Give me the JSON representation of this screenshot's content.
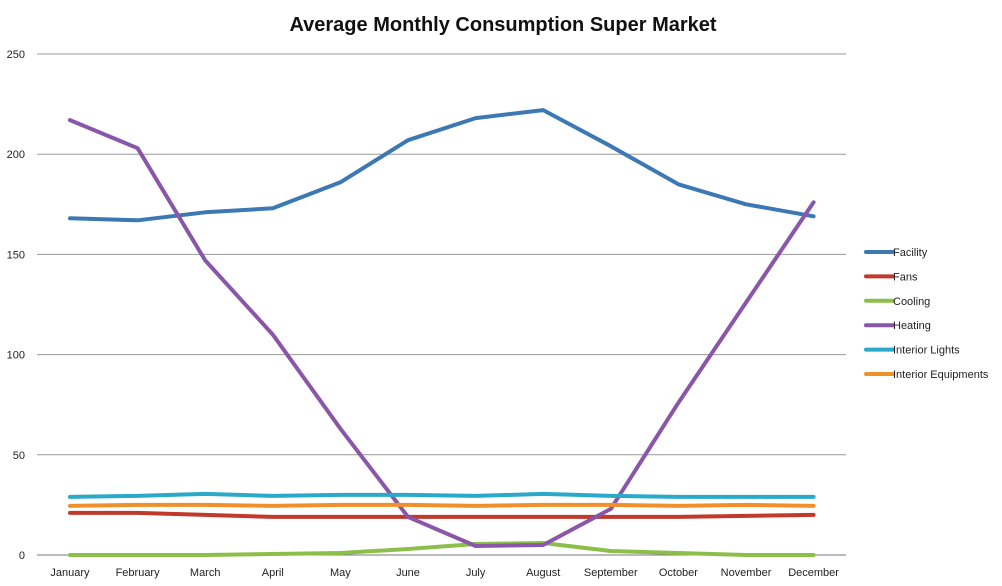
{
  "chart_data": {
    "type": "line",
    "title": "Average Monthly Consumption Super Market",
    "xlabel": "",
    "ylabel": "",
    "ylim": [
      0,
      250
    ],
    "yticks": [
      0,
      50,
      100,
      150,
      200,
      250
    ],
    "grid": true,
    "legend_position": "right",
    "categories": [
      "January",
      "February",
      "March",
      "April",
      "May",
      "June",
      "July",
      "August",
      "September",
      "October",
      "November",
      "December"
    ],
    "series": [
      {
        "name": "Facility",
        "color": "#3c78b4",
        "values": [
          168,
          167,
          171,
          173,
          186,
          207,
          218,
          222,
          204,
          185,
          175,
          169
        ]
      },
      {
        "name": "Fans",
        "color": "#c0392b",
        "values": [
          21,
          21,
          20,
          19,
          19,
          19,
          19,
          19,
          19,
          19,
          19.5,
          20
        ]
      },
      {
        "name": "Cooling",
        "color": "#8cbf4a",
        "values": [
          0,
          0,
          0,
          0.5,
          1,
          3,
          5.5,
          6,
          2,
          1,
          0,
          0
        ]
      },
      {
        "name": "Heating",
        "color": "#8a56a8",
        "values": [
          217,
          203,
          147,
          110,
          63,
          19,
          4.5,
          5,
          23,
          76,
          126,
          176
        ]
      },
      {
        "name": "Interior Lights",
        "color": "#2aa9c9",
        "values": [
          29,
          29.5,
          30.5,
          29.5,
          30,
          30,
          29.5,
          30.5,
          29.5,
          29,
          29,
          29
        ]
      },
      {
        "name": "Interior Equipments",
        "color": "#f0902a",
        "values": [
          24.5,
          25,
          25,
          24.5,
          25,
          25,
          24.5,
          25,
          25,
          24.5,
          25,
          24.5
        ]
      }
    ]
  }
}
